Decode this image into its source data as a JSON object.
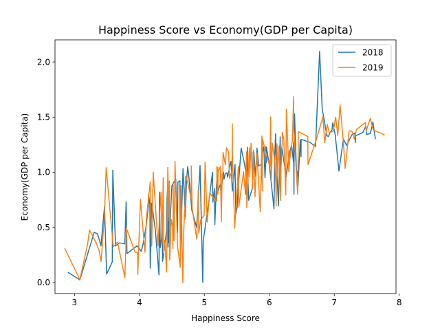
{
  "chart_data": {
    "type": "line",
    "title": "Happiness Score vs Economy(GDP per Capita)",
    "xlabel": "Happiness Score",
    "ylabel": "Economy(GDP per Capita)",
    "xlim": [
      2.7,
      7.95
    ],
    "ylim": [
      -0.1,
      2.2
    ],
    "xticks": [
      3,
      4,
      5,
      6,
      7,
      8
    ],
    "yticks": [
      0.0,
      0.5,
      1.0,
      1.5,
      2.0
    ],
    "xtick_labels": [
      "3",
      "4",
      "5",
      "6",
      "7",
      "8"
    ],
    "ytick_labels": [
      "0.0",
      "0.5",
      "1.0",
      "1.5",
      "2.0"
    ],
    "grid": false,
    "legend_position": "top-right",
    "series": [
      {
        "name": "2018",
        "color": "#1f77b4",
        "points": [
          [
            7.632,
            1.305
          ],
          [
            7.594,
            1.456
          ],
          [
            7.555,
            1.351
          ],
          [
            7.495,
            1.343
          ],
          [
            7.487,
            1.42
          ],
          [
            7.441,
            1.361
          ],
          [
            7.328,
            1.33
          ],
          [
            7.324,
            1.268
          ],
          [
            7.314,
            1.355
          ],
          [
            7.272,
            1.34
          ],
          [
            7.19,
            1.244
          ],
          [
            7.139,
            1.301
          ],
          [
            7.072,
            1.01
          ],
          [
            7.014,
            1.34
          ],
          [
            6.977,
            1.448
          ],
          [
            6.965,
            1.386
          ],
          [
            6.927,
            1.35
          ],
          [
            6.91,
            1.324
          ],
          [
            6.886,
            1.331
          ],
          [
            6.814,
            1.576
          ],
          [
            6.774,
            2.096
          ],
          [
            6.711,
            1.233
          ],
          [
            6.627,
            1.27
          ],
          [
            6.489,
            1.298
          ],
          [
            6.488,
            1.141
          ],
          [
            6.476,
            1.29
          ],
          [
            6.441,
            0.874
          ],
          [
            6.43,
            1.007
          ],
          [
            6.419,
            0.986
          ],
          [
            6.388,
            1.529
          ],
          [
            6.382,
            1.35
          ],
          [
            6.379,
            0.8
          ],
          [
            6.374,
            1.272
          ],
          [
            6.371,
            1.093
          ],
          [
            6.343,
            1.246
          ],
          [
            6.322,
            1.2
          ],
          [
            6.31,
            1.186
          ],
          [
            6.26,
            0.96
          ],
          [
            6.192,
            1.223
          ],
          [
            6.173,
            0.95
          ],
          [
            6.167,
            1.32
          ],
          [
            6.141,
            0.694
          ],
          [
            6.123,
            0.915
          ],
          [
            6.105,
            1.117
          ],
          [
            6.096,
            1.348
          ],
          [
            6.083,
            1.141
          ],
          [
            6.072,
            0.668
          ],
          [
            6.0,
            1.065
          ],
          [
            5.973,
            1.161
          ],
          [
            5.956,
            1.227
          ],
          [
            5.952,
            1.089
          ],
          [
            5.948,
            1.232
          ],
          [
            5.945,
            1.094
          ],
          [
            5.933,
            0.951
          ],
          [
            5.915,
            1.232
          ],
          [
            5.891,
            1.17
          ],
          [
            5.89,
            0.889
          ],
          [
            5.875,
            1.07
          ],
          [
            5.835,
            1.058
          ],
          [
            5.81,
            1.219
          ],
          [
            5.79,
            0.96
          ],
          [
            5.762,
            1.184
          ],
          [
            5.752,
            1.183
          ],
          [
            5.739,
            0.853
          ],
          [
            5.681,
            0.746
          ],
          [
            5.663,
            1.1
          ],
          [
            5.662,
            1.225
          ],
          [
            5.64,
            0.797
          ],
          [
            5.636,
            1.007
          ],
          [
            5.62,
            1.068
          ],
          [
            5.566,
            1.219
          ],
          [
            5.524,
            0.89
          ],
          [
            5.504,
            0.681
          ],
          [
            5.483,
            0.62
          ],
          [
            5.472,
            1.068
          ],
          [
            5.43,
            0.829
          ],
          [
            5.41,
            1.1
          ],
          [
            5.398,
            1.078
          ],
          [
            5.358,
            0.954
          ],
          [
            5.347,
            0.995
          ],
          [
            5.321,
            0.986
          ],
          [
            5.302,
            0.938
          ],
          [
            5.295,
            1.0
          ],
          [
            5.254,
            0.82
          ],
          [
            5.246,
            0.893
          ],
          [
            5.201,
            0.816
          ],
          [
            5.199,
            0.955
          ],
          [
            5.185,
            0.879
          ],
          [
            5.161,
            0.525
          ],
          [
            5.155,
            0.851
          ],
          [
            5.131,
            0.729
          ],
          [
            5.129,
            0.784
          ],
          [
            5.125,
            1.0
          ],
          [
            5.093,
            0.85
          ],
          [
            5.082,
            0.792
          ],
          [
            4.982,
            0.376
          ],
          [
            4.975,
            0.002
          ],
          [
            4.933,
            1.061
          ],
          [
            4.88,
            0.5
          ],
          [
            4.806,
            0.658
          ],
          [
            4.758,
            0.98
          ],
          [
            4.743,
            1.05
          ],
          [
            4.724,
            0.912
          ],
          [
            4.707,
            0.598
          ],
          [
            4.671,
            1.033
          ],
          [
            4.631,
            0.261
          ],
          [
            4.623,
            0.923
          ],
          [
            4.592,
            0.91
          ],
          [
            4.586,
            0.451
          ],
          [
            4.559,
            0.94
          ],
          [
            4.5,
            0.879
          ],
          [
            4.456,
            0.363
          ],
          [
            4.447,
            0.59
          ],
          [
            4.441,
            0.32
          ],
          [
            4.433,
            0.852
          ],
          [
            4.424,
            0.757
          ],
          [
            4.419,
            0.6
          ],
          [
            4.417,
            0.48
          ],
          [
            4.41,
            0.432
          ],
          [
            4.356,
            0.192
          ],
          [
            4.35,
            0.61
          ],
          [
            4.34,
            0.4
          ],
          [
            4.321,
            0.317
          ],
          [
            4.308,
            0.82
          ],
          [
            4.301,
            0.07
          ],
          [
            4.245,
            0.475
          ],
          [
            4.19,
            0.72
          ],
          [
            4.166,
            0.131
          ],
          [
            4.161,
            0.706
          ],
          [
            4.141,
            0.8
          ],
          [
            4.139,
            0.7
          ],
          [
            4.103,
            0.512
          ],
          [
            4.058,
            0.355
          ],
          [
            4.028,
            0.283
          ],
          [
            3.964,
            0.333
          ],
          [
            3.808,
            0.263
          ],
          [
            3.795,
            0.731
          ],
          [
            3.774,
            0.35
          ],
          [
            3.692,
            0.36
          ],
          [
            3.632,
            0.332
          ],
          [
            3.59,
            1.019
          ],
          [
            3.582,
            0.188
          ],
          [
            3.495,
            0.076
          ],
          [
            3.462,
            0.689
          ],
          [
            3.408,
            0.332
          ],
          [
            3.355,
            0.442
          ],
          [
            3.303,
            0.455
          ],
          [
            3.083,
            0.024
          ],
          [
            2.905,
            0.091
          ]
        ]
      },
      {
        "name": "2019",
        "color": "#ff7f0e",
        "points": [
          [
            7.769,
            1.34
          ],
          [
            7.6,
            1.383
          ],
          [
            7.554,
            1.488
          ],
          [
            7.494,
            1.38
          ],
          [
            7.488,
            1.396
          ],
          [
            7.48,
            1.452
          ],
          [
            7.343,
            1.387
          ],
          [
            7.307,
            1.303
          ],
          [
            7.278,
            1.365
          ],
          [
            7.246,
            1.376
          ],
          [
            7.228,
            1.372
          ],
          [
            7.167,
            1.034
          ],
          [
            7.139,
            1.276
          ],
          [
            7.09,
            1.609
          ],
          [
            7.054,
            1.333
          ],
          [
            7.021,
            1.499
          ],
          [
            6.985,
            1.373
          ],
          [
            6.923,
            1.356
          ],
          [
            6.892,
            1.433
          ],
          [
            6.852,
            1.269
          ],
          [
            6.825,
            1.503
          ],
          [
            6.726,
            1.3
          ],
          [
            6.595,
            1.07
          ],
          [
            6.592,
            1.324
          ],
          [
            6.446,
            1.368
          ],
          [
            6.444,
            1.159
          ],
          [
            6.436,
            0.8
          ],
          [
            6.375,
            1.403
          ],
          [
            6.374,
            1.684
          ],
          [
            6.354,
            1.286
          ],
          [
            6.321,
            1.149
          ],
          [
            6.3,
            1.004
          ],
          [
            6.293,
            1.124
          ],
          [
            6.262,
            1.572
          ],
          [
            6.253,
            0.794
          ],
          [
            6.223,
            1.294
          ],
          [
            6.199,
            1.362
          ],
          [
            6.198,
            1.246
          ],
          [
            6.192,
            1.231
          ],
          [
            6.182,
            1.206
          ],
          [
            6.174,
            0.745
          ],
          [
            6.149,
            1.238
          ],
          [
            6.125,
            0.985
          ],
          [
            6.118,
            1.258
          ],
          [
            6.105,
            0.694
          ],
          [
            6.1,
            0.882
          ],
          [
            6.086,
            1.092
          ],
          [
            6.07,
            1.162
          ],
          [
            6.046,
            1.263
          ],
          [
            6.028,
            0.912
          ],
          [
            6.021,
            1.5
          ],
          [
            6.008,
            1.05
          ],
          [
            5.94,
            1.187
          ],
          [
            5.895,
            1.301
          ],
          [
            5.893,
            1.237
          ],
          [
            5.89,
            0.831
          ],
          [
            5.888,
            1.12
          ],
          [
            5.886,
            1.327
          ],
          [
            5.86,
            0.642
          ],
          [
            5.809,
            1.173
          ],
          [
            5.779,
            0.776
          ],
          [
            5.758,
            1.201
          ],
          [
            5.743,
            0.855
          ],
          [
            5.718,
            1.263
          ],
          [
            5.697,
            0.96
          ],
          [
            5.693,
            1.221
          ],
          [
            5.653,
            0.677
          ],
          [
            5.648,
            1.183
          ],
          [
            5.631,
            0.807
          ],
          [
            5.603,
            1.004
          ],
          [
            5.529,
            0.685
          ],
          [
            5.525,
            1.044
          ],
          [
            5.523,
            1.051
          ],
          [
            5.467,
            0.493
          ],
          [
            5.432,
            1.155
          ],
          [
            5.43,
            1.438
          ],
          [
            5.425,
            1.015
          ],
          [
            5.386,
            0.945
          ],
          [
            5.373,
            1.183
          ],
          [
            5.339,
            1.221
          ],
          [
            5.323,
            1.067
          ],
          [
            5.287,
            1.181
          ],
          [
            5.285,
            0.948
          ],
          [
            5.274,
            0.983
          ],
          [
            5.265,
            0.696
          ],
          [
            5.261,
            0.551
          ],
          [
            5.247,
            1.052
          ],
          [
            5.211,
            1.002
          ],
          [
            5.208,
            0.801
          ],
          [
            5.208,
            1.043
          ],
          [
            5.197,
            0.987
          ],
          [
            5.192,
            1.051
          ],
          [
            5.191,
            0.74
          ],
          [
            5.175,
            0.741
          ],
          [
            5.082,
            0.813
          ],
          [
            5.044,
            0.549
          ],
          [
            5.011,
            1.092
          ],
          [
            4.996,
            0.611
          ],
          [
            4.944,
            0.569
          ],
          [
            4.913,
            0.446
          ],
          [
            4.906,
            0.837
          ],
          [
            4.883,
            0.393
          ],
          [
            4.812,
            0.673
          ],
          [
            4.799,
            1.057
          ],
          [
            4.796,
            0.764
          ],
          [
            4.722,
            0.96
          ],
          [
            4.719,
            0.947
          ],
          [
            4.707,
            0.96
          ],
          [
            4.7,
            0.574
          ],
          [
            4.696,
            0.657
          ],
          [
            4.681,
            0.45
          ],
          [
            4.668,
            0.0
          ],
          [
            4.639,
            0.879
          ],
          [
            4.628,
            0.138
          ],
          [
            4.587,
            0.331
          ],
          [
            4.559,
            0.85
          ],
          [
            4.548,
            1.1
          ],
          [
            4.534,
            0.38
          ],
          [
            4.519,
            0.886
          ],
          [
            4.516,
            0.308
          ],
          [
            4.509,
            0.512
          ],
          [
            4.49,
            0.57
          ],
          [
            4.466,
            0.204
          ],
          [
            4.461,
            0.921
          ],
          [
            4.456,
            0.562
          ],
          [
            4.437,
            1.043
          ],
          [
            4.418,
            0.094
          ],
          [
            4.39,
            0.385
          ],
          [
            4.374,
            0.268
          ],
          [
            4.366,
            0.949
          ],
          [
            4.36,
            0.71
          ],
          [
            4.35,
            0.35
          ],
          [
            4.332,
            0.82
          ],
          [
            4.286,
            0.336
          ],
          [
            4.212,
            1.002
          ],
          [
            4.189,
            0.332
          ],
          [
            4.166,
            0.913
          ],
          [
            4.107,
            0.578
          ],
          [
            4.085,
            0.275
          ],
          [
            4.015,
            0.755
          ],
          [
            3.975,
            0.073
          ],
          [
            3.973,
            0.274
          ],
          [
            3.933,
            0.274
          ],
          [
            3.802,
            0.489
          ],
          [
            3.775,
            0.046
          ],
          [
            3.663,
            0.366
          ],
          [
            3.597,
            0.323
          ],
          [
            3.488,
            1.041
          ],
          [
            3.462,
            0.619
          ],
          [
            3.41,
            0.191
          ],
          [
            3.38,
            0.287
          ],
          [
            3.334,
            0.359
          ],
          [
            3.231,
            0.476
          ],
          [
            3.203,
            0.35
          ],
          [
            3.083,
            0.026
          ],
          [
            2.853,
            0.306
          ]
        ]
      }
    ]
  }
}
